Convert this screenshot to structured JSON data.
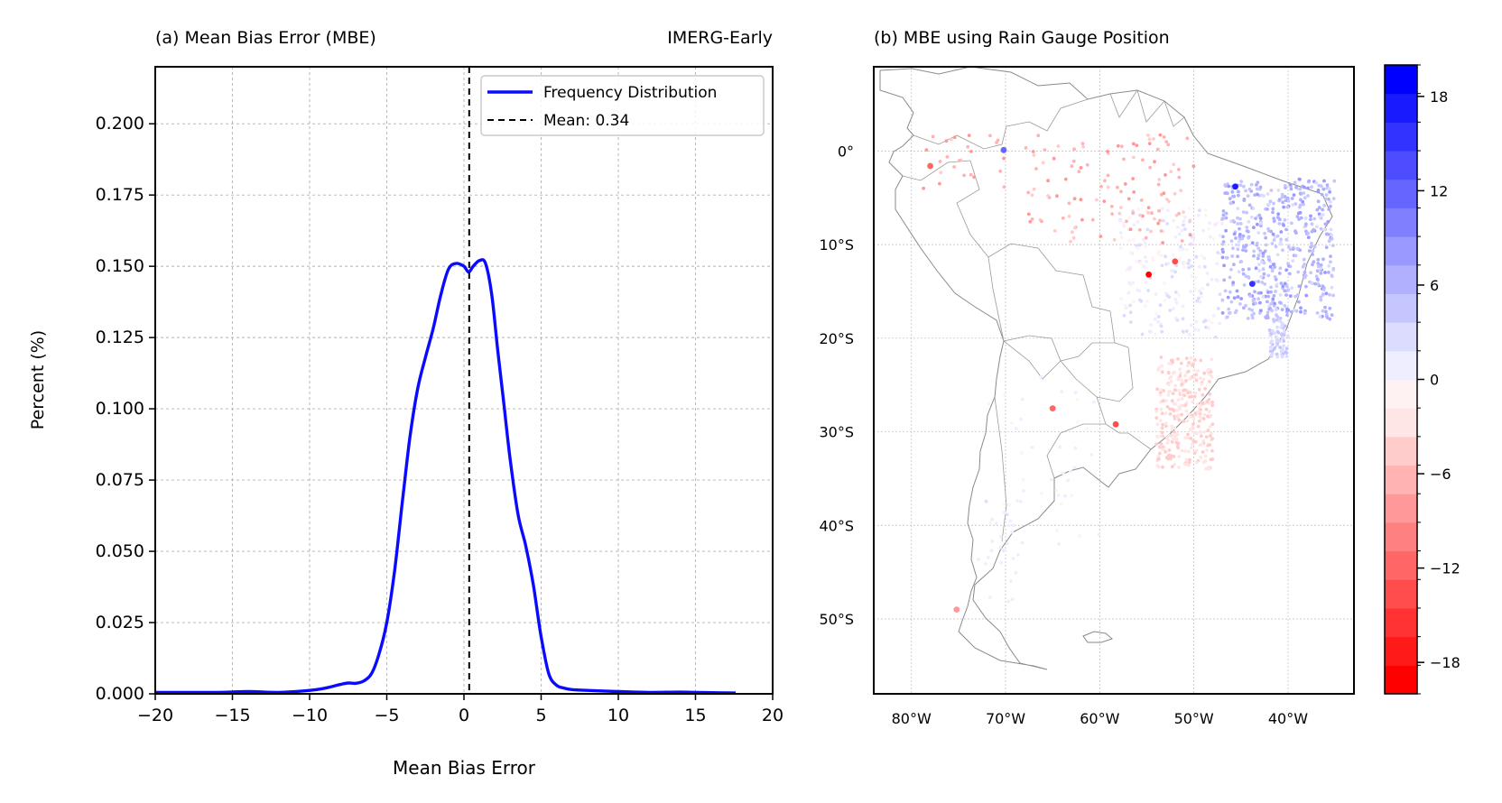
{
  "chart_data": [
    {
      "type": "line",
      "title": "(a) Mean Bias Error (MBE)",
      "title_right": "IMERG-Early",
      "xlabel": "Mean Bias Error",
      "ylabel": "Percent (%)",
      "xlim": [
        -20,
        20
      ],
      "ylim": [
        0,
        0.22
      ],
      "xticks": [
        -20,
        -15,
        -10,
        -5,
        0,
        5,
        10,
        15,
        20
      ],
      "xtick_labels": [
        "−20",
        "−15",
        "−10",
        "−5",
        "0",
        "5",
        "10",
        "15",
        "20"
      ],
      "yticks": [
        0,
        0.025,
        0.05,
        0.075,
        0.1,
        0.125,
        0.15,
        0.175,
        0.2
      ],
      "ytick_labels": [
        "0.000",
        "0.025",
        "0.050",
        "0.075",
        "0.100",
        "0.125",
        "0.150",
        "0.175",
        "0.200"
      ],
      "grid": true,
      "legend_position": "top-right",
      "series": [
        {
          "name": "Frequency Distribution",
          "color": "#0a0aff",
          "x": [
            -20,
            -16,
            -14,
            -12,
            -10,
            -9,
            -8,
            -7.5,
            -7,
            -6.5,
            -6,
            -5.5,
            -5,
            -4.5,
            -4,
            -3.5,
            -3,
            -2.5,
            -2,
            -1.5,
            -1,
            -0.5,
            0,
            0.3,
            0.6,
            1.0,
            1.4,
            1.8,
            2.2,
            2.6,
            3.0,
            3.5,
            4.0,
            4.5,
            5.0,
            5.5,
            6.0,
            6.5,
            7.0,
            8.0,
            10.0,
            12.0,
            14.0,
            16.0,
            17.6
          ],
          "y": [
            0.0005,
            0.0005,
            0.0008,
            0.0005,
            0.0012,
            0.002,
            0.0033,
            0.0038,
            0.0037,
            0.0045,
            0.007,
            0.014,
            0.025,
            0.043,
            0.067,
            0.09,
            0.107,
            0.118,
            0.128,
            0.14,
            0.149,
            0.151,
            0.15,
            0.148,
            0.15,
            0.152,
            0.151,
            0.14,
            0.12,
            0.101,
            0.082,
            0.063,
            0.052,
            0.038,
            0.02,
            0.007,
            0.003,
            0.002,
            0.0015,
            0.0012,
            0.0008,
            0.0005,
            0.0006,
            0.0004,
            0.0003
          ]
        },
        {
          "name": "Mean: 0.34",
          "color": "#000000",
          "style": "dashed",
          "x_value": 0.34
        }
      ]
    },
    {
      "type": "scatter",
      "title": "(b) MBE using Rain Gauge Position",
      "lon_range": [
        -84,
        -33
      ],
      "lat_range": [
        -58,
        9
      ],
      "lon_ticks": [
        -80,
        -70,
        -60,
        -50,
        -40
      ],
      "lon_tick_labels": [
        "80°W",
        "70°W",
        "60°W",
        "50°W",
        "40°W"
      ],
      "lat_ticks": [
        0,
        -10,
        -20,
        -30,
        -40,
        -50
      ],
      "lat_tick_labels": [
        "0°",
        "10°S",
        "20°S",
        "30°S",
        "40°S",
        "50°S"
      ],
      "grid": true,
      "colorbar": {
        "min": -20,
        "max": 20,
        "ticks": [
          18,
          12,
          6,
          0,
          -6,
          -12,
          -18
        ],
        "tick_labels": [
          "18",
          "12",
          "6",
          "0",
          "−6",
          "−12",
          "−18"
        ],
        "colors": [
          "#ff0000",
          "#ff1a1a",
          "#ff3333",
          "#ff4d4d",
          "#ff6666",
          "#ff8080",
          "#ff9999",
          "#ffb3b3",
          "#ffcccc",
          "#ffe6e6",
          "#fff2f2",
          "#eeeeff",
          "#dcdcff",
          "#c6c6ff",
          "#b0b0ff",
          "#9999ff",
          "#8080ff",
          "#6666ff",
          "#4d4dff",
          "#3333ff",
          "#1a1aff",
          "#0000ff"
        ]
      },
      "highlight_points": [
        {
          "lon": -54.8,
          "lat": -13.2,
          "value": -19
        },
        {
          "lon": -58.3,
          "lat": -29.2,
          "value": -14
        },
        {
          "lon": -52.0,
          "lat": -11.8,
          "value": -13
        },
        {
          "lon": -78.0,
          "lat": -1.6,
          "value": -12
        },
        {
          "lon": -65.0,
          "lat": -27.5,
          "value": -11
        },
        {
          "lon": -75.2,
          "lat": -49.0,
          "value": -9
        },
        {
          "lon": -45.6,
          "lat": -3.8,
          "value": 17
        },
        {
          "lon": -43.8,
          "lat": -14.2,
          "value": 15
        },
        {
          "lon": -70.2,
          "lat": 0.1,
          "value": 12
        }
      ]
    }
  ]
}
